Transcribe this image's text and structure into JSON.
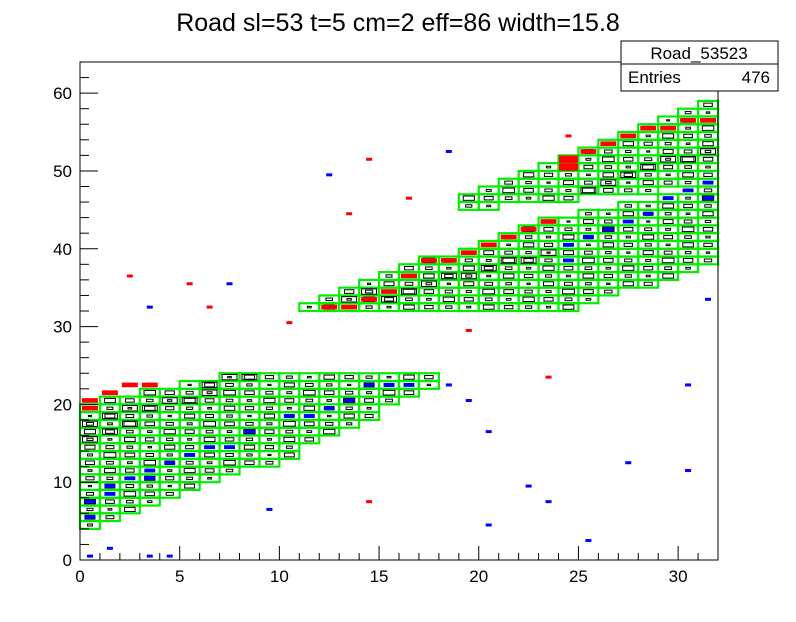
{
  "chart_data": {
    "type": "heatmap",
    "title": "Road sl=53 t=5 cm=2 eff=86 width=15.8",
    "xlabel": "",
    "ylabel": "",
    "xlim": [
      0,
      32
    ],
    "ylim": [
      0,
      64
    ],
    "x_ticks": [
      0,
      5,
      10,
      15,
      20,
      25,
      30
    ],
    "y_ticks": [
      0,
      10,
      20,
      30,
      40,
      50,
      60
    ],
    "grid": false,
    "stats_box": {
      "name": "Road_53523",
      "entries_label": "Entries",
      "entries_value": "476"
    },
    "colors": {
      "road": "#00ee00",
      "hits": "#000000",
      "red": "#ff0000",
      "blue": "#0000ff"
    },
    "road_bands": [
      {
        "x0": 0,
        "x1": 9,
        "ylo0": 4,
        "ylo1": 12,
        "yhi0": 20,
        "yhi1": 24
      },
      {
        "x0": 9,
        "x1": 18,
        "ylo0": 12,
        "ylo1": 22,
        "yhi0": 24,
        "yhi1": 24
      },
      {
        "x0": 11,
        "x1": 24,
        "ylo0": 32,
        "ylo1": 32,
        "yhi0": 33,
        "yhi1": 44
      },
      {
        "x0": 24,
        "x1": 32,
        "ylo0": 32,
        "ylo1": 38,
        "yhi0": 44,
        "yhi1": 48
      },
      {
        "x0": 19,
        "x1": 32,
        "ylo0": 45,
        "ylo1": 48,
        "yhi0": 47,
        "yhi1": 59
      }
    ],
    "red_cells": [
      {
        "x": 0,
        "y": 20
      },
      {
        "x": 0,
        "y": 19
      },
      {
        "x": 1,
        "y": 21
      },
      {
        "x": 2,
        "y": 22
      },
      {
        "x": 3,
        "y": 22
      },
      {
        "x": 12,
        "y": 32
      },
      {
        "x": 13,
        "y": 32
      },
      {
        "x": 14,
        "y": 33
      },
      {
        "x": 15,
        "y": 34
      },
      {
        "x": 16,
        "y": 36
      },
      {
        "x": 17,
        "y": 38
      },
      {
        "x": 18,
        "y": 38
      },
      {
        "x": 19,
        "y": 39
      },
      {
        "x": 20,
        "y": 40
      },
      {
        "x": 21,
        "y": 41
      },
      {
        "x": 22,
        "y": 42
      },
      {
        "x": 23,
        "y": 43
      },
      {
        "x": 24,
        "y": 51
      },
      {
        "x": 24,
        "y": 50
      },
      {
        "x": 25,
        "y": 52
      },
      {
        "x": 26,
        "y": 53
      },
      {
        "x": 27,
        "y": 54
      },
      {
        "x": 28,
        "y": 55
      },
      {
        "x": 29,
        "y": 55
      },
      {
        "x": 30,
        "y": 56
      },
      {
        "x": 31,
        "y": 56
      }
    ],
    "blue_cells": [
      {
        "x": 0,
        "y": 7
      },
      {
        "x": 0,
        "y": 5
      },
      {
        "x": 1,
        "y": 9
      },
      {
        "x": 1,
        "y": 8
      },
      {
        "x": 2,
        "y": 10
      },
      {
        "x": 3,
        "y": 11
      },
      {
        "x": 3,
        "y": 10
      },
      {
        "x": 4,
        "y": 12
      },
      {
        "x": 5,
        "y": 13
      },
      {
        "x": 6,
        "y": 14
      },
      {
        "x": 7,
        "y": 14
      },
      {
        "x": 8,
        "y": 16
      },
      {
        "x": 10,
        "y": 18
      },
      {
        "x": 11,
        "y": 18
      },
      {
        "x": 12,
        "y": 19
      },
      {
        "x": 13,
        "y": 20
      },
      {
        "x": 14,
        "y": 22
      },
      {
        "x": 15,
        "y": 22
      },
      {
        "x": 16,
        "y": 22
      },
      {
        "x": 24,
        "y": 40
      },
      {
        "x": 24,
        "y": 38
      },
      {
        "x": 25,
        "y": 41
      },
      {
        "x": 26,
        "y": 42
      },
      {
        "x": 27,
        "y": 43
      },
      {
        "x": 28,
        "y": 44
      },
      {
        "x": 29,
        "y": 46
      },
      {
        "x": 30,
        "y": 47
      },
      {
        "x": 31,
        "y": 48
      },
      {
        "x": 31,
        "y": 46
      }
    ],
    "black_cells": [
      {
        "x": 0,
        "y": 17
      },
      {
        "x": 0,
        "y": 15
      },
      {
        "x": 1,
        "y": 18
      },
      {
        "x": 1,
        "y": 16
      },
      {
        "x": 2,
        "y": 19
      },
      {
        "x": 2,
        "y": 17
      },
      {
        "x": 3,
        "y": 19
      },
      {
        "x": 4,
        "y": 20
      },
      {
        "x": 5,
        "y": 20
      },
      {
        "x": 6,
        "y": 21
      },
      {
        "x": 6,
        "y": 22
      },
      {
        "x": 7,
        "y": 23
      },
      {
        "x": 8,
        "y": 23
      },
      {
        "x": 13,
        "y": 33
      },
      {
        "x": 14,
        "y": 34
      },
      {
        "x": 15,
        "y": 33
      },
      {
        "x": 16,
        "y": 34
      },
      {
        "x": 17,
        "y": 35
      },
      {
        "x": 18,
        "y": 36
      },
      {
        "x": 19,
        "y": 36
      },
      {
        "x": 20,
        "y": 37
      },
      {
        "x": 21,
        "y": 38
      },
      {
        "x": 22,
        "y": 38
      },
      {
        "x": 23,
        "y": 39
      },
      {
        "x": 25,
        "y": 47
      },
      {
        "x": 26,
        "y": 48
      },
      {
        "x": 27,
        "y": 49
      },
      {
        "x": 28,
        "y": 50
      },
      {
        "x": 29,
        "y": 51
      },
      {
        "x": 30,
        "y": 51
      },
      {
        "x": 31,
        "y": 52
      }
    ],
    "red_outliers": [
      {
        "x": 2.5,
        "y": 36.5
      },
      {
        "x": 5.5,
        "y": 35.5
      },
      {
        "x": 6.5,
        "y": 32.5
      },
      {
        "x": 10.5,
        "y": 30.5
      },
      {
        "x": 13.5,
        "y": 44.5
      },
      {
        "x": 14.5,
        "y": 51.5
      },
      {
        "x": 16.5,
        "y": 46.5
      },
      {
        "x": 19.5,
        "y": 29.5
      },
      {
        "x": 14.5,
        "y": 7.5
      },
      {
        "x": 23.5,
        "y": 23.5
      },
      {
        "x": 24.5,
        "y": 54.5
      }
    ],
    "blue_outliers": [
      {
        "x": 0.5,
        "y": 0.5
      },
      {
        "x": 1.5,
        "y": 1.5
      },
      {
        "x": 3.5,
        "y": 0.5
      },
      {
        "x": 4.5,
        "y": 0.5
      },
      {
        "x": 3.5,
        "y": 32.5
      },
      {
        "x": 7.5,
        "y": 35.5
      },
      {
        "x": 9.5,
        "y": 6.5
      },
      {
        "x": 12.5,
        "y": 49.5
      },
      {
        "x": 18.5,
        "y": 22.5
      },
      {
        "x": 19.5,
        "y": 20.5
      },
      {
        "x": 20.5,
        "y": 16.5
      },
      {
        "x": 20.5,
        "y": 4.5
      },
      {
        "x": 22.5,
        "y": 9.5
      },
      {
        "x": 23.5,
        "y": 7.5
      },
      {
        "x": 25.5,
        "y": 2.5
      },
      {
        "x": 27.5,
        "y": 12.5
      },
      {
        "x": 30.5,
        "y": 11.5
      },
      {
        "x": 30.5,
        "y": 22.5
      },
      {
        "x": 31.5,
        "y": 33.5
      },
      {
        "x": 18.5,
        "y": 52.5
      }
    ]
  }
}
